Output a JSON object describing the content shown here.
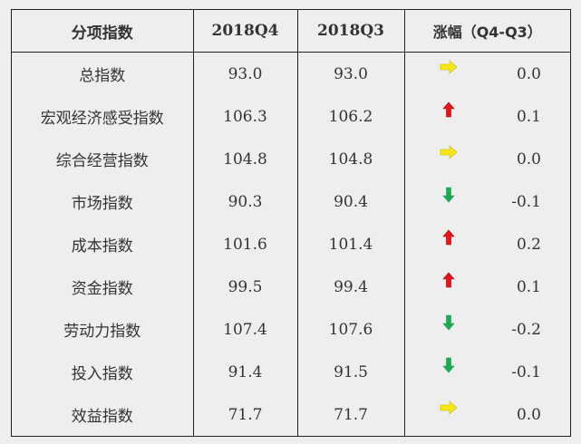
{
  "table": {
    "headers": {
      "name": "分项指数",
      "q4": "2018Q4",
      "q3": "2018Q3",
      "change": "涨幅（Q4-Q3）"
    },
    "rows": [
      {
        "name": "总指数",
        "q4": "93.0",
        "q3": "93.0",
        "direction": "flat-right-arrow-icon",
        "change": "0.0"
      },
      {
        "name": "宏观经济感受指数",
        "q4": "106.3",
        "q3": "106.2",
        "direction": "up-arrow-icon",
        "change": "0.1"
      },
      {
        "name": "综合经营指数",
        "q4": "104.8",
        "q3": "104.8",
        "direction": "flat-right-arrow-icon",
        "change": "0.0"
      },
      {
        "name": "市场指数",
        "q4": "90.3",
        "q3": "90.4",
        "direction": "down-arrow-icon",
        "change": "-0.1"
      },
      {
        "name": "成本指数",
        "q4": "101.6",
        "q3": "101.4",
        "direction": "up-arrow-icon",
        "change": "0.2"
      },
      {
        "name": "资金指数",
        "q4": "99.5",
        "q3": "99.4",
        "direction": "up-arrow-icon",
        "change": "0.1"
      },
      {
        "name": "劳动力指数",
        "q4": "107.4",
        "q3": "107.6",
        "direction": "down-arrow-icon",
        "change": "-0.2"
      },
      {
        "name": "投入指数",
        "q4": "91.4",
        "q3": "91.5",
        "direction": "down-arrow-icon",
        "change": "-0.1"
      },
      {
        "name": "效益指数",
        "q4": "71.7",
        "q3": "71.7",
        "direction": "flat-right-arrow-icon",
        "change": "0.0"
      }
    ]
  },
  "colors": {
    "up": "#e8141b",
    "down": "#22a84a",
    "flat": "#f5e614"
  }
}
